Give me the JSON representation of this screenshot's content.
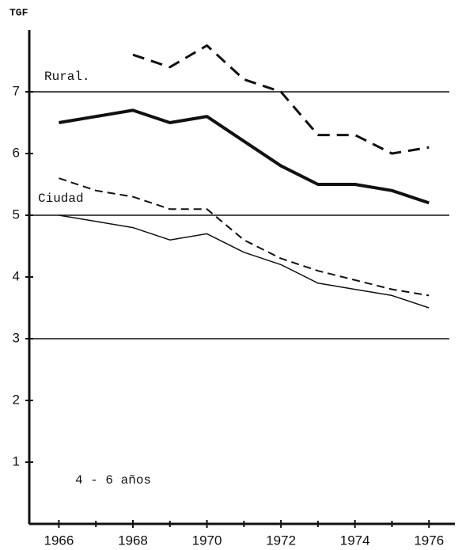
{
  "chart_data": {
    "type": "line",
    "ylabel": "TGF",
    "annotations": [
      "Rural.",
      "Ciudad",
      "4 - 6 años"
    ],
    "x": [
      1966,
      1967,
      1968,
      1969,
      1970,
      1971,
      1972,
      1973,
      1974,
      1975,
      1976
    ],
    "series": [
      {
        "color": "#111111",
        "width": 3,
        "dash": true,
        "values": [
          null,
          null,
          7.6,
          7.4,
          7.75,
          7.2,
          7.0,
          6.3,
          6.3,
          6.0,
          6.1
        ]
      },
      {
        "color": "#111111",
        "width": 4,
        "dash": false,
        "values": [
          6.5,
          6.6,
          6.7,
          6.5,
          6.6,
          6.2,
          5.8,
          5.5,
          5.5,
          5.4,
          5.2
        ]
      },
      {
        "color": "#111111",
        "width": 2,
        "dash": true,
        "values": [
          5.6,
          5.4,
          5.3,
          5.1,
          5.1,
          4.6,
          4.3,
          4.1,
          3.95,
          3.8,
          3.7
        ]
      },
      {
        "color": "#111111",
        "width": 1.5,
        "dash": false,
        "values": [
          5.0,
          4.9,
          4.8,
          4.6,
          4.7,
          4.4,
          4.2,
          3.9,
          3.8,
          3.7,
          3.5
        ]
      }
    ],
    "xlim": [
      1965.2,
      1976.7
    ],
    "xticks": [
      1966,
      1968,
      1970,
      1972,
      1974,
      1976
    ],
    "xminor_ticks": [
      1967,
      1969,
      1971,
      1973,
      1975
    ],
    "ylim": [
      0,
      8
    ],
    "yticks": [
      1,
      2,
      3,
      4,
      5,
      6,
      7
    ],
    "hlines": [
      7,
      5,
      3
    ]
  }
}
